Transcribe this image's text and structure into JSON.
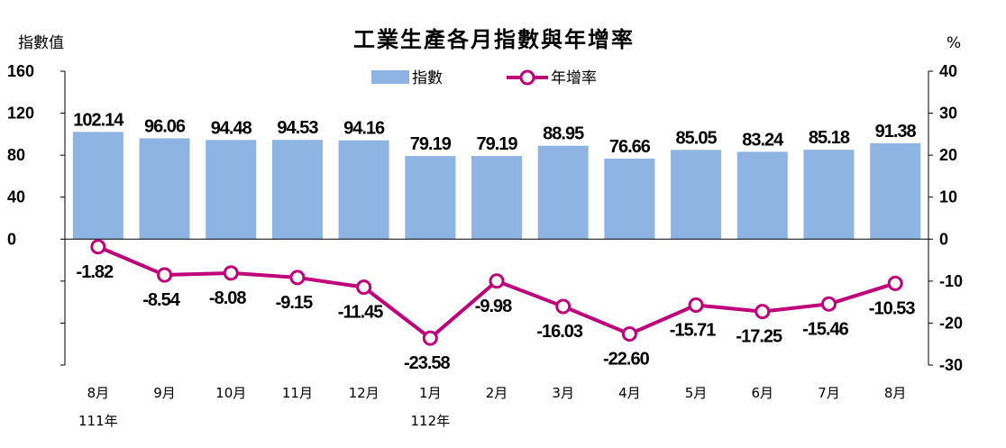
{
  "chart_data": {
    "type": "bar",
    "title": "工業生產各月指數與年增率",
    "ylabel_left": "指數值",
    "ylabel_right": "%",
    "categories": [
      "8月",
      "9月",
      "10月",
      "11月",
      "12月",
      "1月",
      "2月",
      "3月",
      "4月",
      "5月",
      "6月",
      "7月",
      "8月"
    ],
    "year_labels": [
      {
        "index": 0,
        "label": "111年"
      },
      {
        "index": 5,
        "label": "112年"
      }
    ],
    "series": [
      {
        "name": "指數",
        "type": "bar",
        "axis": "left",
        "color": "#8db4e2",
        "values": [
          102.14,
          96.06,
          94.48,
          94.53,
          94.16,
          79.19,
          79.19,
          88.95,
          76.66,
          85.05,
          83.24,
          85.18,
          91.38
        ],
        "labels": [
          "102.14",
          "96.06",
          "94.48",
          "94.53",
          "94.16",
          "79.19",
          "79.19",
          "88.95",
          "76.66",
          "85.05",
          "83.24",
          "85.18",
          "91.38"
        ]
      },
      {
        "name": "年增率",
        "type": "line",
        "axis": "right",
        "color": "#c0007a",
        "values": [
          -1.82,
          -8.54,
          -8.08,
          -9.15,
          -11.45,
          -23.58,
          -9.98,
          -16.03,
          -22.6,
          -15.71,
          -17.25,
          -15.46,
          -10.53
        ],
        "labels": [
          "-1.82",
          "-8.54",
          "-8.08",
          "-9.15",
          "-11.45",
          "-23.58",
          "-9.98",
          "-16.03",
          "-22.60",
          "-15.71",
          "-17.25",
          "-15.46",
          "-10.53"
        ]
      }
    ],
    "y_left": {
      "ylim": [
        0,
        160
      ],
      "ticks": [
        0,
        40,
        80,
        120,
        160
      ],
      "tick_labels": [
        "0",
        "40",
        "80",
        "120",
        "160"
      ]
    },
    "y_right": {
      "ylim": [
        -30,
        40
      ],
      "ticks": [
        -30,
        -20,
        -10,
        0,
        10,
        20,
        30,
        40
      ],
      "tick_labels": [
        "-30",
        "-20",
        "-10",
        "0",
        "10",
        "20",
        "30",
        "40"
      ]
    },
    "legend_position": "top-center",
    "grid": false
  }
}
